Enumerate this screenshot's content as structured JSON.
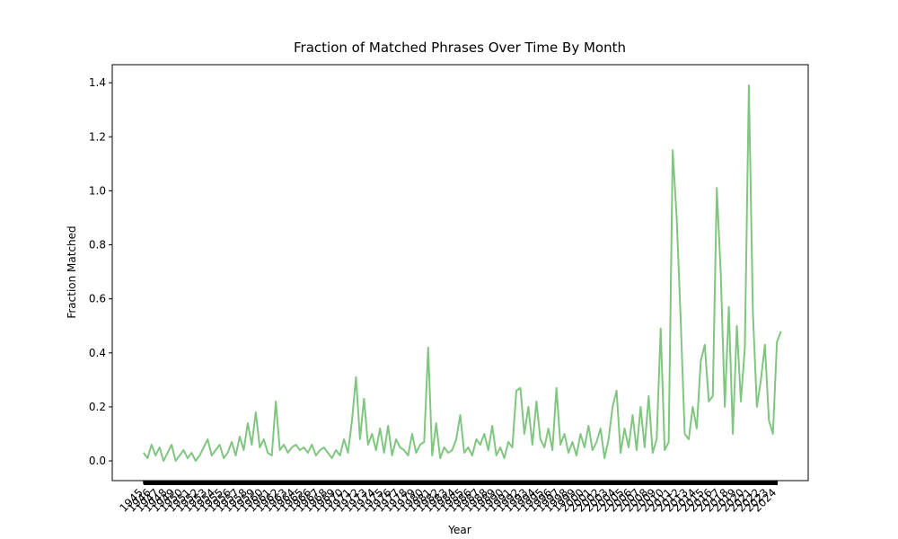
{
  "chart_data": {
    "type": "line",
    "title": "Fraction of Matched Phrases Over Time By Month",
    "xlabel": "Year",
    "ylabel": "Fraction Matched",
    "color": "#80c680",
    "x": [
      1945,
      1945.5,
      1946,
      1946.5,
      1947,
      1947.5,
      1948,
      1948.5,
      1949,
      1949.5,
      1950,
      1950.5,
      1951,
      1951.5,
      1952,
      1952.5,
      1953,
      1953.5,
      1954,
      1954.5,
      1955,
      1955.5,
      1956,
      1956.5,
      1957,
      1957.5,
      1958,
      1958.5,
      1959,
      1959.5,
      1960,
      1960.5,
      1961,
      1961.5,
      1962,
      1962.5,
      1963,
      1963.5,
      1964,
      1964.5,
      1965,
      1965.5,
      1966,
      1966.5,
      1967,
      1967.5,
      1968,
      1968.5,
      1969,
      1969.5,
      1970,
      1970.5,
      1971,
      1971.5,
      1972,
      1972.5,
      1973,
      1973.5,
      1974,
      1974.5,
      1975,
      1975.5,
      1976,
      1976.5,
      1977,
      1977.5,
      1978,
      1978.5,
      1979,
      1979.5,
      1980,
      1980.5,
      1981,
      1981.5,
      1982,
      1982.5,
      1983,
      1983.5,
      1984,
      1984.5,
      1985,
      1985.5,
      1986,
      1986.5,
      1987,
      1987.5,
      1988,
      1988.5,
      1989,
      1989.5,
      1990,
      1990.5,
      1991,
      1991.5,
      1992,
      1992.5,
      1993,
      1993.5,
      1994,
      1994.5,
      1995,
      1995.5,
      1996,
      1996.5,
      1997,
      1997.5,
      1998,
      1998.5,
      1999,
      1999.5,
      2000,
      2000.5,
      2001,
      2001.5,
      2002,
      2002.5,
      2003,
      2003.5,
      2004,
      2004.5,
      2005,
      2005.5,
      2006,
      2006.5,
      2007,
      2007.5,
      2008,
      2008.5,
      2009,
      2009.5,
      2010,
      2010.5,
      2011,
      2011.5,
      2012,
      2012.5,
      2013,
      2013.5,
      2014,
      2014.5,
      2015,
      2015.5,
      2016,
      2016.5,
      2017,
      2017.5,
      2018,
      2018.5,
      2019,
      2019.5,
      2020,
      2020.5,
      2021,
      2021.5,
      2022,
      2022.5,
      2023,
      2023.5,
      2024,
      2024.5
    ],
    "values": [
      0.03,
      0.01,
      0.06,
      0.02,
      0.05,
      0.0,
      0.03,
      0.06,
      0.0,
      0.02,
      0.04,
      0.01,
      0.03,
      0.0,
      0.02,
      0.05,
      0.08,
      0.02,
      0.04,
      0.06,
      0.01,
      0.03,
      0.07,
      0.02,
      0.09,
      0.04,
      0.14,
      0.06,
      0.18,
      0.05,
      0.08,
      0.03,
      0.02,
      0.22,
      0.04,
      0.06,
      0.03,
      0.05,
      0.06,
      0.04,
      0.05,
      0.03,
      0.06,
      0.02,
      0.04,
      0.05,
      0.03,
      0.01,
      0.04,
      0.02,
      0.08,
      0.03,
      0.15,
      0.31,
      0.08,
      0.23,
      0.06,
      0.1,
      0.04,
      0.12,
      0.03,
      0.13,
      0.02,
      0.08,
      0.05,
      0.04,
      0.02,
      0.1,
      0.03,
      0.06,
      0.07,
      0.42,
      0.02,
      0.14,
      0.01,
      0.05,
      0.03,
      0.04,
      0.08,
      0.17,
      0.03,
      0.05,
      0.02,
      0.08,
      0.06,
      0.1,
      0.04,
      0.13,
      0.02,
      0.05,
      0.01,
      0.07,
      0.05,
      0.26,
      0.27,
      0.1,
      0.2,
      0.06,
      0.22,
      0.08,
      0.05,
      0.12,
      0.04,
      0.27,
      0.06,
      0.1,
      0.03,
      0.07,
      0.02,
      0.1,
      0.05,
      0.13,
      0.04,
      0.07,
      0.12,
      0.01,
      0.08,
      0.2,
      0.26,
      0.03,
      0.12,
      0.05,
      0.17,
      0.04,
      0.2,
      0.05,
      0.24,
      0.03,
      0.08,
      0.49,
      0.04,
      0.07,
      1.15,
      0.9,
      0.52,
      0.1,
      0.08,
      0.2,
      0.12,
      0.37,
      0.43,
      0.22,
      0.24,
      1.01,
      0.69,
      0.2,
      0.57,
      0.1,
      0.5,
      0.22,
      0.42,
      1.39,
      0.55,
      0.2,
      0.3,
      0.43,
      0.15,
      0.1,
      0.44,
      0.48
    ],
    "xlim": [
      1941.1,
      2027.9
    ],
    "xticks": [
      1945,
      1946,
      1947,
      1948,
      1949,
      1950,
      1951,
      1952,
      1953,
      1954,
      1955,
      1956,
      1957,
      1958,
      1959,
      1960,
      1961,
      1962,
      1963,
      1964,
      1965,
      1966,
      1967,
      1968,
      1969,
      1970,
      1971,
      1972,
      1973,
      1974,
      1975,
      1976,
      1977,
      1978,
      1979,
      1980,
      1981,
      1982,
      1983,
      1984,
      1985,
      1986,
      1987,
      1988,
      1989,
      1990,
      1991,
      1992,
      1993,
      1994,
      1995,
      1996,
      1997,
      1998,
      1999,
      2000,
      2001,
      2002,
      2003,
      2004,
      2005,
      2006,
      2007,
      2008,
      2009,
      2010,
      2011,
      2012,
      2013,
      2014,
      2015,
      2016,
      2017,
      2018,
      2019,
      2020,
      2021,
      2022,
      2023,
      2024
    ],
    "ylim": [
      -0.073,
      1.467
    ],
    "yticks": [
      {
        "value": 0,
        "label": "0.0"
      },
      {
        "value": 0.2,
        "label": "0.2"
      },
      {
        "value": 0.4,
        "label": "0.4"
      },
      {
        "value": 0.6,
        "label": "0.6"
      },
      {
        "value": 0.8,
        "label": "0.8"
      },
      {
        "value": 1.0,
        "label": "1.0"
      },
      {
        "value": 1.2,
        "label": "1.2"
      },
      {
        "value": 1.4,
        "label": "1.4"
      }
    ]
  }
}
